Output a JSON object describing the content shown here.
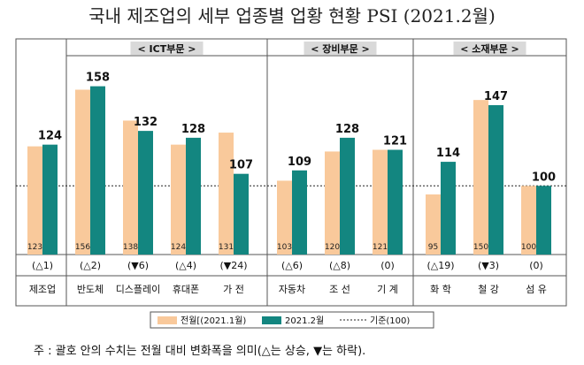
{
  "title": "국내 제조업의 세부 업종별 업황 현황 PSI (2021.2월)",
  "note": "주 : 괄호 안의 수치는 전월 대비 변화폭을 의미(△는 상승, ▼는 하락).",
  "colors": {
    "prev": "#F9C99B",
    "curr": "#138680",
    "groupHeaderBg": "#D9D9D9"
  },
  "chart_data": {
    "type": "bar",
    "categories": [
      "제조업",
      "반도체",
      "디스플레이",
      "휴대폰",
      "가 전",
      "자동차",
      "조 선",
      "기 계",
      "화 학",
      "철 강",
      "섬 유"
    ],
    "series": [
      {
        "name": "전월[(2021.1월)",
        "values": [
          123,
          156,
          138,
          124,
          131,
          103,
          120,
          121,
          95,
          150,
          100
        ]
      },
      {
        "name": "2021.2월",
        "values": [
          124,
          158,
          132,
          128,
          107,
          109,
          128,
          121,
          114,
          147,
          100
        ]
      }
    ],
    "changes": [
      "(△1)",
      "(△2)",
      "(▼6)",
      "(△4)",
      "(▼24)",
      "(△6)",
      "(△8)",
      "(0)",
      "(△19)",
      "(▼3)",
      "(0)"
    ],
    "baseline": {
      "label": "기준(100)",
      "value": 100
    },
    "groups": [
      {
        "label": "< ICT부문 >",
        "from": 1,
        "to": 4
      },
      {
        "label": "< 장비부문 >",
        "from": 5,
        "to": 7
      },
      {
        "label": "< 소재부문 >",
        "from": 8,
        "to": 10
      }
    ],
    "ylim": [
      60,
      165
    ],
    "legend": "bottom-center"
  }
}
